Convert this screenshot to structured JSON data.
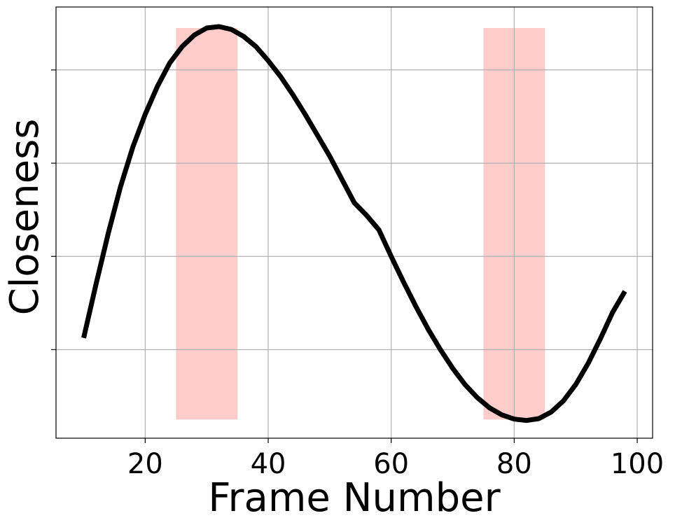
{
  "chart_data": {
    "type": "line",
    "xlabel": "Frame Number",
    "ylabel": "Closeness",
    "xlim": [
      5.5,
      102.5
    ],
    "ylim": [
      0.21,
      1.135
    ],
    "x_ticks": [
      20,
      40,
      60,
      80,
      100
    ],
    "y_ticks": [
      0.4,
      0.6,
      0.8,
      1.0
    ],
    "y_tick_labels_visible": false,
    "grid": true,
    "colors": {
      "line": "#000000",
      "highlight": "#ffcccc",
      "grid": "#b0b0b0"
    },
    "highlight_regions": [
      {
        "x_start": 25,
        "x_end": 35,
        "y_start": 0.25,
        "y_end": 1.09
      },
      {
        "x_start": 75,
        "x_end": 85,
        "y_start": 0.25,
        "y_end": 1.09
      }
    ],
    "series": [
      {
        "x": [
          10,
          12,
          14,
          16,
          18,
          20,
          22,
          24,
          26,
          28,
          30,
          32,
          34,
          36,
          38,
          40,
          42,
          44,
          46,
          48,
          50,
          52,
          54,
          56,
          58,
          60,
          62,
          64,
          66,
          68,
          70,
          72,
          74,
          76,
          78,
          80,
          82,
          84,
          86,
          88,
          90,
          92,
          94,
          96,
          98
        ],
        "values": [
          0.425,
          0.54,
          0.65,
          0.75,
          0.835,
          0.905,
          0.965,
          1.015,
          1.05,
          1.075,
          1.09,
          1.093,
          1.087,
          1.072,
          1.05,
          1.02,
          0.986,
          0.947,
          0.905,
          0.86,
          0.815,
          0.765,
          0.715,
          0.688,
          0.657,
          0.6,
          0.545,
          0.493,
          0.444,
          0.4,
          0.36,
          0.325,
          0.297,
          0.275,
          0.26,
          0.251,
          0.248,
          0.252,
          0.266,
          0.29,
          0.325,
          0.37,
          0.423,
          0.48,
          0.525
        ]
      }
    ]
  }
}
